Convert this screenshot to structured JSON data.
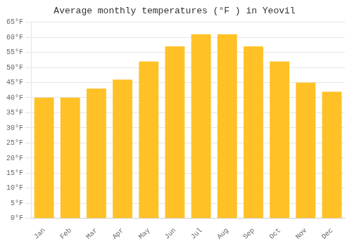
{
  "chart_data": {
    "type": "bar",
    "title": "Average monthly temperatures (°F ) in Yeovil",
    "categories": [
      "Jan",
      "Feb",
      "Mar",
      "Apr",
      "May",
      "Jun",
      "Jul",
      "Aug",
      "Sep",
      "Oct",
      "Nov",
      "Dec"
    ],
    "values": [
      40,
      40,
      43,
      46,
      52,
      57,
      61,
      61,
      57,
      52,
      45,
      42
    ],
    "color": "#FFC125",
    "ylim": [
      0,
      65
    ],
    "yticks": [
      {
        "value": 0,
        "label": "0°F"
      },
      {
        "value": 5,
        "label": "5°F"
      },
      {
        "value": 10,
        "label": "10°F"
      },
      {
        "value": 15,
        "label": "15°F"
      },
      {
        "value": 20,
        "label": "20°F"
      },
      {
        "value": 25,
        "label": "25°F"
      },
      {
        "value": 30,
        "label": "30°F"
      },
      {
        "value": 35,
        "label": "35°F"
      },
      {
        "value": 40,
        "label": "40°F"
      },
      {
        "value": 45,
        "label": "45°F"
      },
      {
        "value": 50,
        "label": "50°F"
      },
      {
        "value": 55,
        "label": "55°F"
      },
      {
        "value": 60,
        "label": "60°F"
      },
      {
        "value": 65,
        "label": "65°F"
      }
    ],
    "grid": true
  }
}
